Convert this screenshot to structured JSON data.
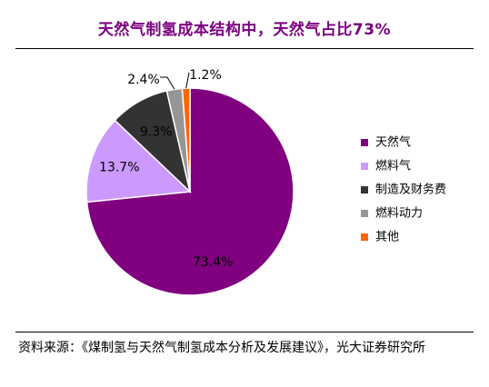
{
  "title": "天然气制氢成本结构中，天然气占比73%",
  "source": "资料来源：《煤制氢与天然气制氢成本分析及发展建议》，光大证券研究所",
  "colors": {
    "title": "#7b0080",
    "slices": [
      "#800080",
      "#cc99ff",
      "#333333",
      "#969696",
      "#ff6600"
    ]
  },
  "chart_data": {
    "type": "pie",
    "title": "天然气制氢成本结构中，天然气占比73%",
    "start": "12 o'clock, clockwise",
    "legend_position": "right",
    "slices": [
      {
        "label": "天然气",
        "value": 73.4,
        "display": "73.4%"
      },
      {
        "label": "燃料气",
        "value": 13.7,
        "display": "13.7%"
      },
      {
        "label": "制造及财务费",
        "value": 9.3,
        "display": "9.3%"
      },
      {
        "label": "燃料动力",
        "value": 2.4,
        "display": "2.4%"
      },
      {
        "label": "其他",
        "value": 1.2,
        "display": "1.2%"
      }
    ]
  }
}
